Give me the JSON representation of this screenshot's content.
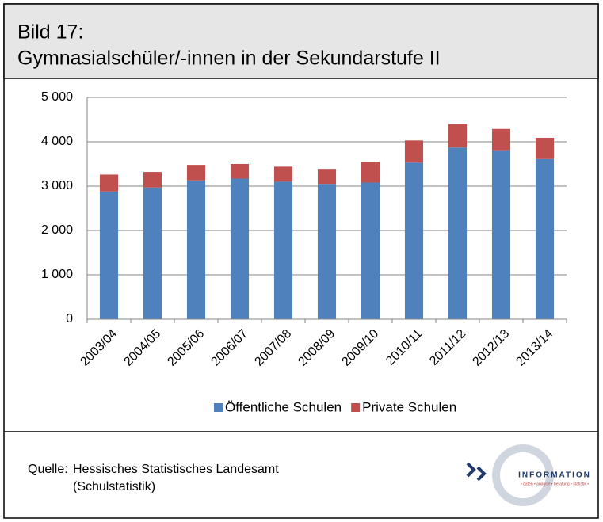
{
  "header": {
    "label": "Bild 17:",
    "title": "Gymnasialschüler/-innen in der Sekundarstufe II"
  },
  "chart_data": {
    "type": "stacked-bar",
    "categories": [
      "2003/04",
      "2004/05",
      "2005/06",
      "2006/07",
      "2007/08",
      "2008/09",
      "2009/10",
      "2010/11",
      "2011/12",
      "2012/13",
      "2013/14"
    ],
    "series": [
      {
        "name": "Öffentliche Schulen",
        "color": "#4f81bd",
        "values": [
          2880,
          2970,
          3130,
          3170,
          3100,
          3050,
          3080,
          3530,
          3870,
          3810,
          3610
        ]
      },
      {
        "name": "Private Schulen",
        "color": "#c0504d",
        "values": [
          380,
          350,
          350,
          330,
          340,
          340,
          470,
          500,
          530,
          480,
          480
        ]
      }
    ],
    "ylim": [
      0,
      5000
    ],
    "yticks": [
      0,
      {
        "value": 1000,
        "label": "1 000"
      },
      {
        "value": 2000,
        "label": "2 000"
      },
      {
        "value": 3000,
        "label": "3 000"
      },
      {
        "value": 4000,
        "label": "4 000"
      },
      {
        "value": 5000,
        "label": "5 000"
      }
    ],
    "grid": true,
    "legend": "bottom"
  },
  "footer": {
    "source_label": "Quelle:",
    "source_lines": [
      "Hessisches Statistisches Landesamt",
      "(Schulstatistik)"
    ],
    "logo": {
      "name": "INFORMATION",
      "tagline": "• daten • analyse • beratung • statistik •"
    }
  }
}
